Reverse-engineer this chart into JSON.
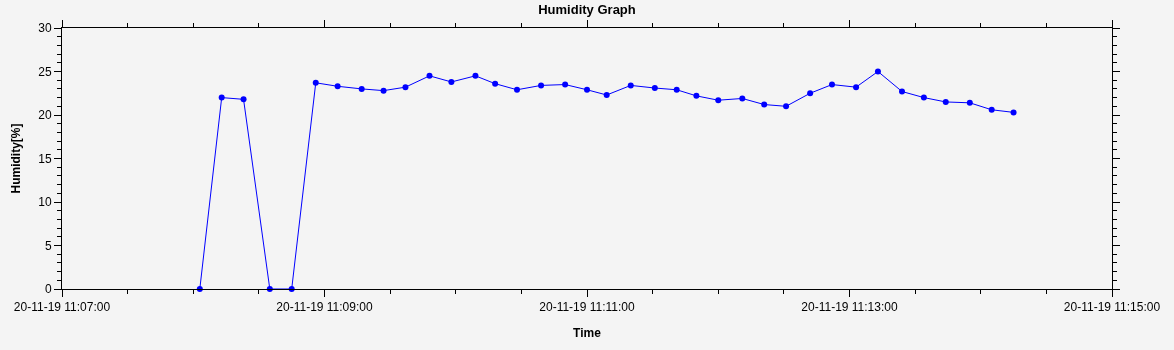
{
  "chart_data": {
    "type": "line",
    "title": "Humidity Graph",
    "xlabel": "Time",
    "ylabel": "Humidity[%]",
    "x": [
      "--11-20T11:08:03",
      "--11-20T11:08:13",
      "--11-20T11:08:23",
      "--11-20T11:08:35",
      "--11-20T11:08:45",
      "--11-20T11:08:56",
      "--11-20T11:09:06",
      "--11-20T11:09:17",
      "--11-20T11:09:27",
      "--11-20T11:09:37",
      "--11-20T11:09:48",
      "--11-20T11:09:58",
      "--11-20T11:10:09",
      "--11-20T11:10:18",
      "--11-20T11:10:28",
      "--11-20T11:10:39",
      "--11-20T11:10:50",
      "--11-20T11:11:00",
      "--11-20T11:11:09",
      "--11-20T11:11:20",
      "--11-20T11:11:31",
      "--11-20T11:11:41",
      "--11-20T11:11:50",
      "--11-20T11:12:00",
      "--11-20T11:12:11",
      "--11-20T11:12:21",
      "--11-20T11:12:31",
      "--11-20T11:12:42",
      "--11-20T11:12:52",
      "--11-20T11:13:03",
      "--11-20T11:13:13",
      "--11-20T11:13:24",
      "--11-20T11:13:34",
      "--11-20T11:13:44",
      "--11-20T11:13:55",
      "--11-20T11:14:05",
      "--11-20T11:14:15"
    ],
    "series": [
      {
        "color": "#0000ff",
        "values": [
          0,
          22,
          21.8,
          0,
          0,
          23.7,
          23.3,
          23.0,
          22.8,
          23.2,
          24.5,
          23.8,
          24.5,
          23.6,
          22.9,
          23.4,
          23.5,
          22.9,
          22.3,
          23.4,
          23.1,
          22.9,
          22.2,
          21.7,
          21.9,
          21.2,
          21.0,
          22.5,
          23.5,
          23.2,
          25.0,
          22.7,
          22.0,
          21.5,
          21.4,
          20.6,
          20.3
        ]
      }
    ],
    "xlim": [
      "--11-20T11:07:00",
      "--11-20T11:15:00"
    ],
    "xticks": [
      {
        "value": "--11-20T11:07:00",
        "label": "20-11-19 11:07:00"
      },
      {
        "value": "--11-20T11:07:30",
        "label": null
      },
      {
        "value": "--11-20T11:08:00",
        "label": null
      },
      {
        "value": "--11-20T11:08:30",
        "label": null
      },
      {
        "value": "--11-20T11:09:00",
        "label": "20-11-19 11:09:00"
      },
      {
        "value": "--11-20T11:09:30",
        "label": null
      },
      {
        "value": "--11-20T11:10:00",
        "label": null
      },
      {
        "value": "--11-20T11:10:30",
        "label": null
      },
      {
        "value": "--11-20T11:11:00",
        "label": "20-11-19 11:11:00"
      },
      {
        "value": "--11-20T11:11:30",
        "label": null
      },
      {
        "value": "--11-20T11:12:00",
        "label": null
      },
      {
        "value": "--11-20T11:12:30",
        "label": null
      },
      {
        "value": "--11-20T11:13:00",
        "label": "20-11-19 11:13:00"
      },
      {
        "value": "--11-20T11:13:30",
        "label": null
      },
      {
        "value": "--11-20T11:14:00",
        "label": null
      },
      {
        "value": "--11-20T11:14:30",
        "label": null
      },
      {
        "value": "--11-20T11:15:00",
        "label": "20-11-19 11:15:00"
      }
    ],
    "ylim": [
      0,
      30
    ],
    "yticks": [
      0,
      {
        "value": 1,
        "label": null
      },
      {
        "value": 2,
        "label": null
      },
      {
        "value": 3,
        "label": null
      },
      {
        "value": 4,
        "label": null
      },
      5,
      {
        "value": 6,
        "label": null
      },
      {
        "value": 7,
        "label": null
      },
      {
        "value": 8,
        "label": null
      },
      {
        "value": 9,
        "label": null
      },
      10,
      {
        "value": 11,
        "label": null
      },
      {
        "value": 12,
        "label": null
      },
      {
        "value": 13,
        "label": null
      },
      {
        "value": 14,
        "label": null
      },
      15,
      {
        "value": 16,
        "label": null
      },
      {
        "value": 17,
        "label": null
      },
      {
        "value": 18,
        "label": null
      },
      {
        "value": 19,
        "label": null
      },
      20,
      {
        "value": 21,
        "label": null
      },
      {
        "value": 22,
        "label": null
      },
      {
        "value": 23,
        "label": null
      },
      {
        "value": 24,
        "label": null
      },
      25,
      {
        "value": 26,
        "label": null
      },
      {
        "value": 27,
        "label": null
      },
      {
        "value": 28,
        "label": null
      },
      {
        "value": 29,
        "label": null
      },
      30
    ],
    "grid": false,
    "marker": "circle",
    "line_style": "solid"
  }
}
